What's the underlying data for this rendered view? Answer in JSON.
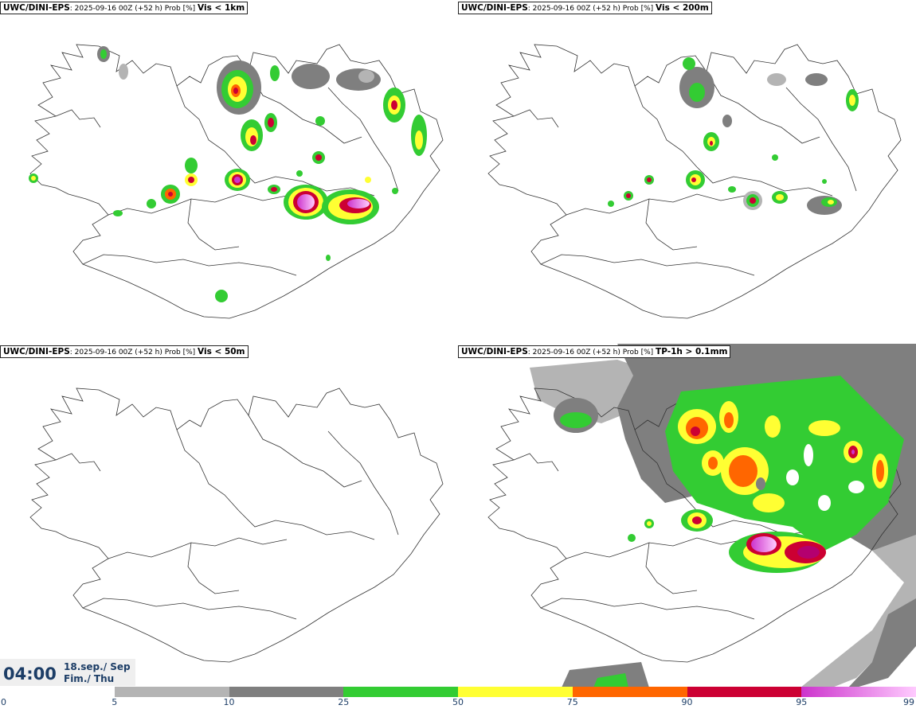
{
  "panels": [
    {
      "model": "UWC/DINI-EPS",
      "run": ": 2025-09-16 00Z (+52 h) Prob [%]",
      "variable": "Vis < 1km"
    },
    {
      "model": "UWC/DINI-EPS",
      "run": ": 2025-09-16 00Z (+52 h) Prob [%]",
      "variable": "Vis < 200m"
    },
    {
      "model": "UWC/DINI-EPS",
      "run": ": 2025-09-16 00Z (+52 h) Prob [%]",
      "variable": "Vis < 50m"
    },
    {
      "model": "UWC/DINI-EPS",
      "run": ": 2025-09-16 00Z (+52 h) Prob [%]",
      "variable": "TP-1h > 0.1mm"
    }
  ],
  "valid_time": {
    "time": "04:00",
    "date_line1": "18.sep./ Sep",
    "date_line2": "Fim./ Thu"
  },
  "colorbar": {
    "ticks": [
      "0",
      "5",
      "10",
      "25",
      "50",
      "75",
      "90",
      "95",
      "99"
    ],
    "colors": [
      "#ffffff",
      "#b4b4b4",
      "#7f7f7f",
      "#33cc33",
      "#ffff33",
      "#ff6600",
      "#cc0033",
      "#cc33cc",
      "#ffccff"
    ]
  }
}
